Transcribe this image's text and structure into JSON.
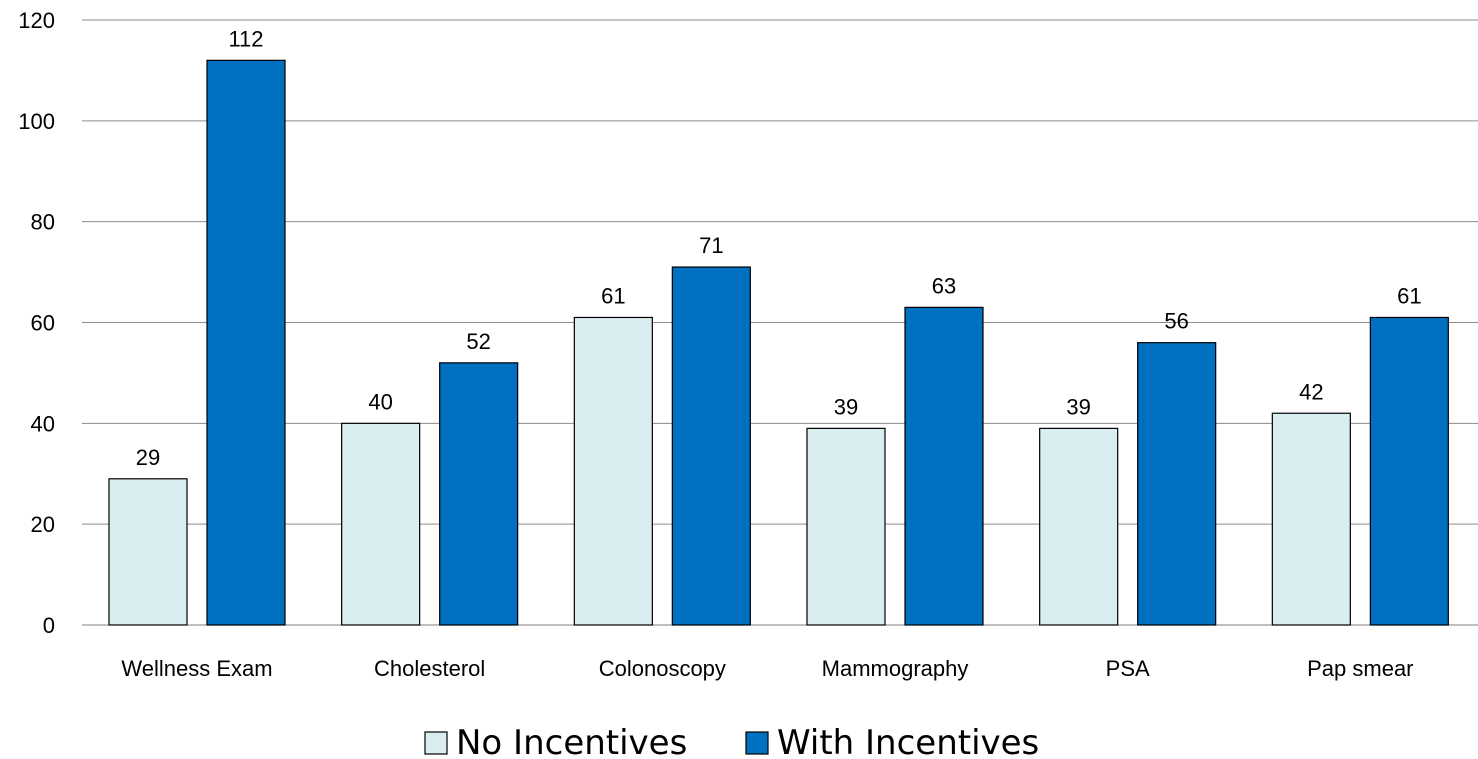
{
  "chart_data": {
    "type": "bar",
    "categories": [
      "Wellness Exam",
      "Cholesterol",
      "Colonoscopy",
      "Mammography",
      "PSA",
      "Pap smear"
    ],
    "series": [
      {
        "name": "No Incentives",
        "values": [
          29,
          40,
          61,
          39,
          39,
          42
        ],
        "color": "#daedf0"
      },
      {
        "name": "With Incentives",
        "values": [
          112,
          52,
          71,
          63,
          56,
          61
        ],
        "color": "#0070c0"
      }
    ],
    "ylim": [
      0,
      120
    ],
    "yticks": [
      0,
      20,
      40,
      60,
      80,
      100,
      120
    ],
    "grid": true,
    "data_labels": true,
    "legend_position": "bottom",
    "title": "",
    "xlabel": "",
    "ylabel": ""
  }
}
